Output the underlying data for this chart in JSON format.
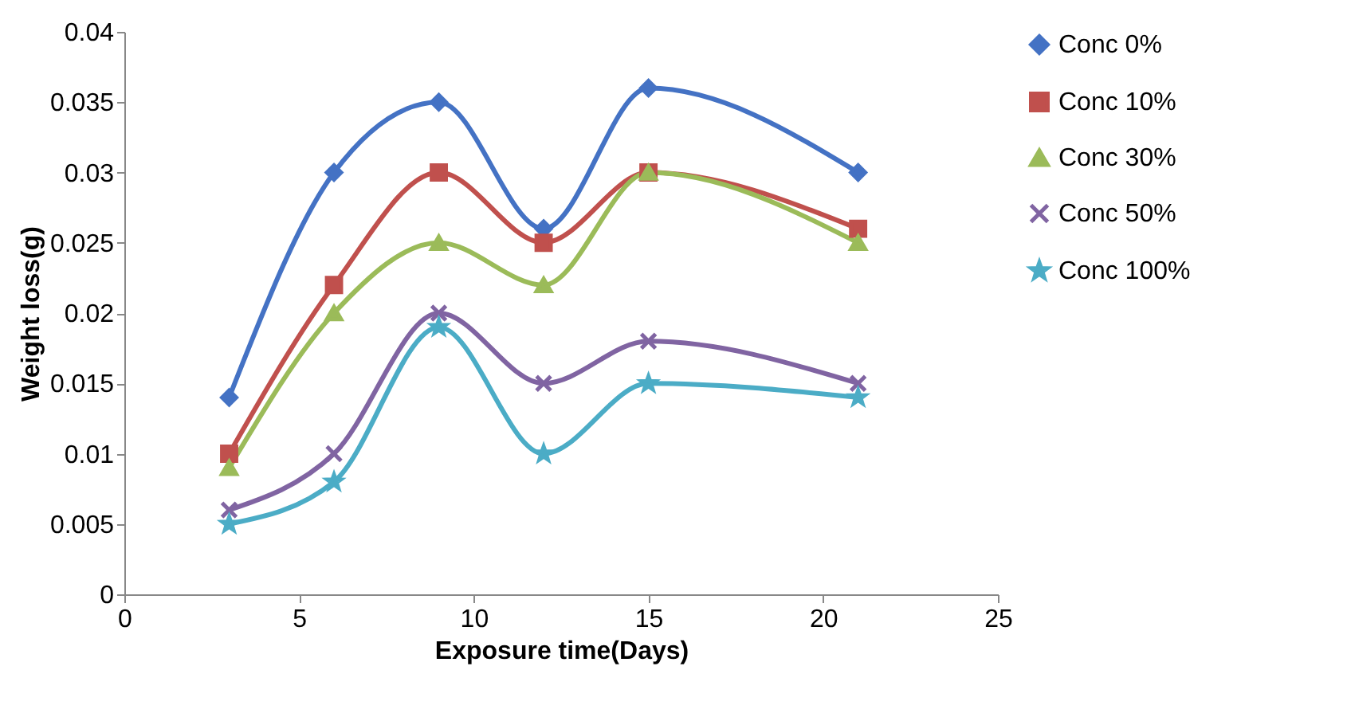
{
  "chart_data": {
    "type": "line",
    "xlabel": "Exposure time(Days)",
    "ylabel": "Weight loss(g)",
    "x": [
      3,
      6,
      9,
      12,
      15,
      21
    ],
    "series": [
      {
        "name": "Conc 0%",
        "color": "#4472c4",
        "marker": "diamond",
        "values": [
          0.014,
          0.03,
          0.035,
          0.026,
          0.036,
          0.03
        ]
      },
      {
        "name": "Conc 10%",
        "color": "#c0504d",
        "marker": "square",
        "values": [
          0.01,
          0.022,
          0.03,
          0.025,
          0.03,
          0.026
        ]
      },
      {
        "name": "Conc 30%",
        "color": "#9bbb59",
        "marker": "triangle",
        "values": [
          0.009,
          0.02,
          0.025,
          0.022,
          0.03,
          0.025
        ]
      },
      {
        "name": "Conc 50%",
        "color": "#8064a2",
        "marker": "cross",
        "values": [
          0.006,
          0.01,
          0.02,
          0.015,
          0.018,
          0.015
        ]
      },
      {
        "name": "Conc 100%",
        "color": "#4bacc6",
        "marker": "star",
        "values": [
          0.005,
          0.008,
          0.019,
          0.01,
          0.015,
          0.014
        ]
      }
    ],
    "xlim": [
      0,
      25
    ],
    "xticks": [
      0,
      5,
      10,
      15,
      20,
      25
    ],
    "ylim": [
      0,
      0.04
    ],
    "yticks": [
      0,
      0.005,
      0.01,
      0.015,
      0.02,
      0.025,
      0.03,
      0.035,
      0.04
    ],
    "grid": false,
    "legend": "right",
    "line_style": "solid"
  }
}
